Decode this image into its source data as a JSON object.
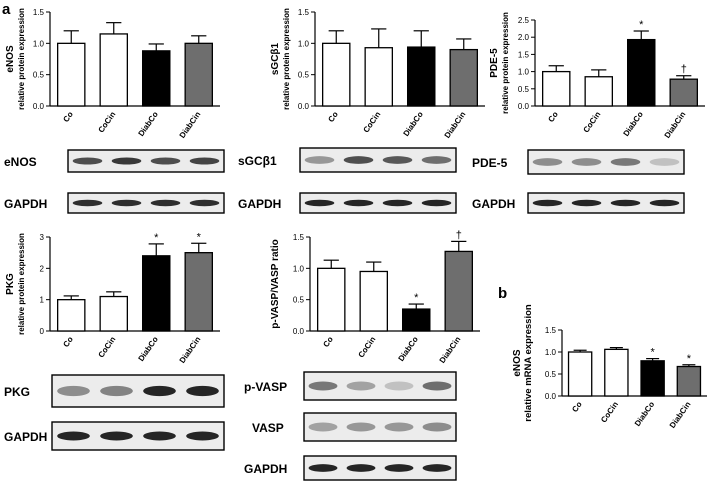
{
  "panel_letters": [
    "a",
    "b"
  ],
  "colors": {
    "Co": "#ffffff",
    "CoCin": "#ffffff",
    "DiabCo": "#000000",
    "DiabCin": "#6e6e6e",
    "axis": "#000000",
    "blot_bg": "#ececec",
    "band": "#1a1a1a"
  },
  "chart_data": [
    {
      "id": "enos-protein",
      "type": "bar",
      "categories": [
        "Co",
        "CoCin",
        "DiabCo",
        "DiabCin"
      ],
      "values": [
        1.0,
        1.15,
        0.88,
        1.0
      ],
      "errors": [
        0.2,
        0.18,
        0.11,
        0.12
      ],
      "annotations": [
        "",
        "",
        "",
        ""
      ],
      "title_line1": "eNOS",
      "ylabel": "relative protein expression",
      "ylim": [
        0,
        1.5
      ],
      "yticks": [
        "0.0",
        "0.5",
        "1.0",
        "1.5"
      ],
      "grid": false
    },
    {
      "id": "sgcb1-protein",
      "type": "bar",
      "categories": [
        "Co",
        "CoCin",
        "DiabCo",
        "DiabCin"
      ],
      "values": [
        1.0,
        0.93,
        0.94,
        0.9
      ],
      "errors": [
        0.2,
        0.3,
        0.26,
        0.17
      ],
      "annotations": [
        "",
        "",
        "",
        ""
      ],
      "title_line1": "sGCβ1",
      "ylabel": "relative protein expression",
      "ylim": [
        0,
        1.5
      ],
      "yticks": [
        "0.0",
        "0.5",
        "1.0",
        "1.5"
      ],
      "grid": false
    },
    {
      "id": "pde5-protein",
      "type": "bar",
      "categories": [
        "Co",
        "CoCin",
        "DiabCo",
        "DiabCin"
      ],
      "values": [
        1.0,
        0.85,
        1.93,
        0.78
      ],
      "errors": [
        0.17,
        0.2,
        0.25,
        0.1
      ],
      "annotations": [
        "",
        "",
        "*",
        "†"
      ],
      "title_line1": "PDE-5",
      "ylabel": "relative protein expression",
      "ylim": [
        0,
        2.5
      ],
      "yticks": [
        "0.0",
        "0.5",
        "1.0",
        "1.5",
        "2.0",
        "2.5"
      ],
      "grid": false
    },
    {
      "id": "pkg-protein",
      "type": "bar",
      "categories": [
        "Co",
        "CoCin",
        "DiabCo",
        "DiabCin"
      ],
      "values": [
        1.0,
        1.1,
        2.4,
        2.5
      ],
      "errors": [
        0.12,
        0.15,
        0.38,
        0.3
      ],
      "annotations": [
        "",
        "",
        "*",
        "*"
      ],
      "title_line1": "PKG",
      "ylabel": "relative protein expression",
      "ylim": [
        0,
        3
      ],
      "yticks": [
        "0",
        "1",
        "2",
        "3"
      ],
      "grid": false
    },
    {
      "id": "pvasp-ratio",
      "type": "bar",
      "categories": [
        "Co",
        "CoCin",
        "DiabCo",
        "DiabCin"
      ],
      "values": [
        1.0,
        0.95,
        0.35,
        1.27
      ],
      "errors": [
        0.13,
        0.15,
        0.08,
        0.16
      ],
      "annotations": [
        "",
        "",
        "*",
        "†"
      ],
      "title_line1": "p-VASP/VASP ratio",
      "ylabel": "",
      "ylim": [
        0,
        1.5
      ],
      "yticks": [
        "0.0",
        "0.5",
        "1.0",
        "1.5"
      ],
      "grid": false
    },
    {
      "id": "enos-mrna",
      "type": "bar",
      "categories": [
        "Co",
        "CoCin",
        "DiabCo",
        "DiabCin"
      ],
      "values": [
        1.0,
        1.06,
        0.8,
        0.67
      ],
      "errors": [
        0.04,
        0.04,
        0.05,
        0.04
      ],
      "annotations": [
        "",
        "",
        "*",
        "*"
      ],
      "title_line1": "eNOS",
      "ylabel": "relative mRNA expression",
      "ylim": [
        0,
        1.5
      ],
      "yticks": [
        "0.0",
        "0.5",
        "1.0",
        "1.5"
      ],
      "grid": false
    }
  ],
  "blots": [
    {
      "id": "blot-enos",
      "label": "eNOS",
      "intensities": [
        0.75,
        0.85,
        0.75,
        0.8
      ]
    },
    {
      "id": "blot-gapdh-1",
      "label": "GAPDH",
      "intensities": [
        0.9,
        0.9,
        0.9,
        0.9
      ]
    },
    {
      "id": "blot-sgc",
      "label": "sGCβ1",
      "intensities": [
        0.4,
        0.75,
        0.7,
        0.6
      ]
    },
    {
      "id": "blot-gapdh-2",
      "label": "GAPDH",
      "intensities": [
        0.95,
        0.95,
        0.95,
        0.95
      ]
    },
    {
      "id": "blot-pde5",
      "label": "PDE-5",
      "intensities": [
        0.45,
        0.45,
        0.55,
        0.2
      ]
    },
    {
      "id": "blot-gapdh-3",
      "label": "GAPDH",
      "intensities": [
        0.95,
        0.95,
        0.95,
        0.95
      ]
    },
    {
      "id": "blot-pkg",
      "label": "PKG",
      "intensities": [
        0.45,
        0.5,
        0.95,
        0.95
      ]
    },
    {
      "id": "blot-gapdh-4",
      "label": "GAPDH",
      "intensities": [
        0.95,
        0.95,
        0.95,
        0.95
      ]
    },
    {
      "id": "blot-pvasp",
      "label": "p-VASP",
      "intensities": [
        0.55,
        0.35,
        0.2,
        0.6
      ]
    },
    {
      "id": "blot-vasp",
      "label": "VASP",
      "intensities": [
        0.35,
        0.4,
        0.4,
        0.45
      ]
    },
    {
      "id": "blot-gapdh-5",
      "label": "GAPDH",
      "intensities": [
        0.95,
        0.95,
        0.95,
        0.95
      ]
    }
  ]
}
